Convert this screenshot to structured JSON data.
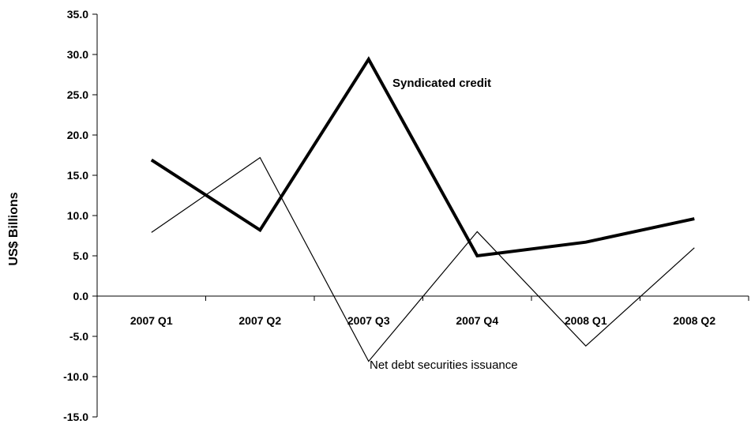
{
  "chart_data": {
    "type": "line",
    "title": "",
    "xlabel": "",
    "ylabel": "US$ Billions",
    "ylim": [
      -15.0,
      35.0
    ],
    "ytick_step": 5.0,
    "yticks": [
      "35.0",
      "30.0",
      "25.0",
      "20.0",
      "15.0",
      "10.0",
      "5.0",
      "0.0",
      "-5.0",
      "-10.0",
      "-15.0"
    ],
    "categories": [
      "2007 Q1",
      "2007 Q2",
      "2007 Q3",
      "2007 Q4",
      "2008 Q1",
      "2008 Q2"
    ],
    "grid": false,
    "legend": "none (series labelled directly on chart)",
    "series": [
      {
        "name": "Syndicated credit",
        "values": [
          16.9,
          8.2,
          29.4,
          5.0,
          6.7,
          9.6
        ],
        "color": "#000000",
        "style": "thick"
      },
      {
        "name": "Net debt securities issuance",
        "values": [
          7.9,
          17.2,
          -8.1,
          8.0,
          -6.2,
          6.0
        ],
        "color": "#000000",
        "style": "thin"
      }
    ]
  }
}
